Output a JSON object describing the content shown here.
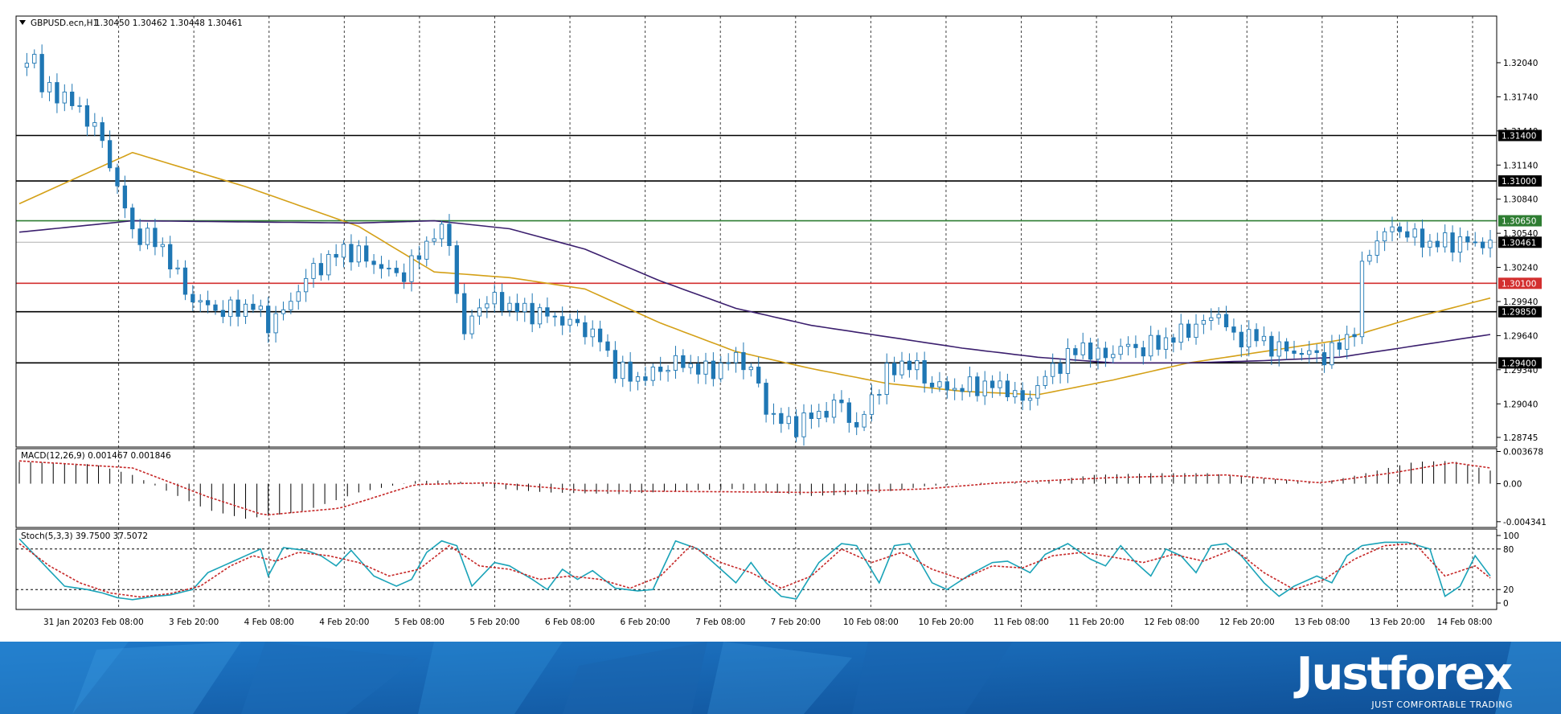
{
  "colors": {
    "bull": "#ffffff",
    "bear": "#1f77b4",
    "candle_outline": "#1f77b4",
    "ma_fast": "#d4a017",
    "ma_slow": "#3b1f6e",
    "level_green": "#2e7d32",
    "level_red": "#d32f2f",
    "level_black": "#000000",
    "bid_line": "#b0b0b0",
    "macd_signal": "#c62828",
    "stoch_main": "#1aa3b8",
    "stoch_signal": "#c62828",
    "footer_bg": "#1560a8"
  },
  "chart_data": [
    {
      "type": "candlestick",
      "title": "GBPUSD.ecn,H1",
      "ohlc_header": "1.30450 1.30462 1.30448 1.30461",
      "ylim": [
        1.2866,
        1.3245
      ],
      "y_ticks": [
        "1.32040",
        "1.31740",
        "1.31440",
        "1.31140",
        "1.30840",
        "1.30540",
        "1.30240",
        "1.29940",
        "1.29640",
        "1.29340",
        "1.29040",
        "1.28745"
      ],
      "y_tick_values": [
        1.3204,
        1.3174,
        1.3144,
        1.3114,
        1.3084,
        1.3054,
        1.3024,
        1.2994,
        1.2964,
        1.2934,
        1.2904,
        1.28745
      ],
      "x_ticks": [
        "31 Jan 2020",
        "3 Feb 08:00",
        "3 Feb 20:00",
        "4 Feb 08:00",
        "4 Feb 20:00",
        "5 Feb 08:00",
        "5 Feb 20:00",
        "6 Feb 08:00",
        "6 Feb 20:00",
        "7 Feb 08:00",
        "7 Feb 20:00",
        "10 Feb 08:00",
        "10 Feb 20:00",
        "11 Feb 08:00",
        "11 Feb 20:00",
        "12 Feb 08:00",
        "12 Feb 20:00",
        "13 Feb 08:00",
        "13 Feb 20:00",
        "14 Feb 08:00"
      ],
      "levels": [
        {
          "label": "1.31400",
          "value": 1.314,
          "color": "#000000",
          "tag_bg": "#000000"
        },
        {
          "label": "1.31000",
          "value": 1.31,
          "color": "#000000",
          "tag_bg": "#000000"
        },
        {
          "label": "1.30650",
          "value": 1.3065,
          "color": "#2e7d32",
          "tag_bg": "#2e7d32"
        },
        {
          "label": "1.30100",
          "value": 1.301,
          "color": "#d32f2f",
          "tag_bg": "#d32f2f"
        },
        {
          "label": "1.29850",
          "value": 1.2985,
          "color": "#000000",
          "tag_bg": "#000000"
        },
        {
          "label": "1.29400",
          "value": 1.294,
          "color": "#000000",
          "tag_bg": "#000000"
        }
      ],
      "current_price": {
        "label": "1.30461",
        "value": 1.30461
      },
      "close_path": [
        [
          0,
          1.32
        ],
        [
          4,
          1.3212
        ],
        [
          6,
          1.318
        ],
        [
          10,
          1.3178
        ],
        [
          14,
          1.3168
        ],
        [
          18,
          1.3156
        ],
        [
          22,
          1.3135
        ],
        [
          26,
          1.3095
        ],
        [
          30,
          1.3055
        ],
        [
          34,
          1.305
        ],
        [
          38,
          1.3042
        ],
        [
          42,
          1.3015
        ],
        [
          46,
          1.2995
        ],
        [
          50,
          1.299
        ],
        [
          54,
          1.2985
        ],
        [
          58,
          1.2988
        ],
        [
          62,
          1.299
        ],
        [
          66,
          1.2975
        ],
        [
          70,
          1.2985
        ],
        [
          74,
          1.3005
        ],
        [
          78,
          1.3022
        ],
        [
          82,
          1.303
        ],
        [
          86,
          1.304
        ],
        [
          90,
          1.3035
        ],
        [
          94,
          1.3028
        ],
        [
          98,
          1.302
        ],
        [
          102,
          1.3018
        ],
        [
          106,
          1.3035
        ],
        [
          110,
          1.3055
        ],
        [
          114,
          1.305
        ],
        [
          116,
          1.3
        ],
        [
          118,
          1.2965
        ],
        [
          122,
          1.2992
        ],
        [
          126,
          1.2995
        ],
        [
          130,
          1.299
        ],
        [
          134,
          1.2985
        ],
        [
          138,
          1.2983
        ],
        [
          142,
          1.298
        ],
        [
          146,
          1.2975
        ],
        [
          150,
          1.297
        ],
        [
          154,
          1.296
        ],
        [
          158,
          1.2935
        ],
        [
          162,
          1.2928
        ],
        [
          166,
          1.2927
        ],
        [
          170,
          1.2935
        ],
        [
          174,
          1.294
        ],
        [
          178,
          1.2938
        ],
        [
          182,
          1.2932
        ],
        [
          186,
          1.2937
        ],
        [
          190,
          1.2945
        ],
        [
          194,
          1.2935
        ],
        [
          198,
          1.29
        ],
        [
          202,
          1.2888
        ],
        [
          206,
          1.2885
        ],
        [
          210,
          1.2893
        ],
        [
          214,
          1.2898
        ],
        [
          218,
          1.2905
        ],
        [
          222,
          1.288
        ],
        [
          226,
          1.291
        ],
        [
          230,
          1.293
        ],
        [
          234,
          1.294
        ],
        [
          238,
          1.2935
        ],
        [
          242,
          1.292
        ],
        [
          246,
          1.2918
        ],
        [
          250,
          1.2918
        ],
        [
          254,
          1.292
        ],
        [
          258,
          1.292
        ],
        [
          262,
          1.2918
        ],
        [
          266,
          1.2905
        ],
        [
          270,
          1.292
        ],
        [
          274,
          1.2935
        ],
        [
          278,
          1.2945
        ],
        [
          282,
          1.2955
        ],
        [
          286,
          1.2945
        ],
        [
          290,
          1.295
        ],
        [
          294,
          1.2955
        ],
        [
          298,
          1.2952
        ],
        [
          302,
          1.2958
        ],
        [
          306,
          1.2962
        ],
        [
          310,
          1.297
        ],
        [
          314,
          1.2975
        ],
        [
          318,
          1.2985
        ],
        [
          322,
          1.296
        ],
        [
          326,
          1.2965
        ],
        [
          330,
          1.2958
        ],
        [
          334,
          1.2952
        ],
        [
          338,
          1.295
        ],
        [
          342,
          1.2948
        ],
        [
          346,
          1.2946
        ],
        [
          350,
          1.2955
        ],
        [
          354,
          1.297
        ],
        [
          356,
          1.302
        ],
        [
          358,
          1.304
        ],
        [
          362,
          1.3055
        ],
        [
          366,
          1.3058
        ],
        [
          370,
          1.305
        ],
        [
          374,
          1.3045
        ],
        [
          378,
          1.3046
        ],
        [
          382,
          1.3047
        ],
        [
          386,
          1.3045
        ],
        [
          390,
          1.30461
        ]
      ],
      "ma_fast": [
        [
          0,
          1.308
        ],
        [
          30,
          1.3125
        ],
        [
          60,
          1.3095
        ],
        [
          90,
          1.306
        ],
        [
          110,
          1.302
        ],
        [
          130,
          1.3015
        ],
        [
          150,
          1.3005
        ],
        [
          170,
          1.2975
        ],
        [
          190,
          1.295
        ],
        [
          210,
          1.2935
        ],
        [
          230,
          1.2922
        ],
        [
          250,
          1.2915
        ],
        [
          270,
          1.2912
        ],
        [
          290,
          1.2925
        ],
        [
          310,
          1.294
        ],
        [
          330,
          1.295
        ],
        [
          350,
          1.296
        ],
        [
          370,
          1.298
        ],
        [
          390,
          1.2997
        ]
      ],
      "ma_slow": [
        [
          0,
          1.3055
        ],
        [
          30,
          1.3065
        ],
        [
          60,
          1.3064
        ],
        [
          90,
          1.3063
        ],
        [
          110,
          1.3065
        ],
        [
          130,
          1.3058
        ],
        [
          150,
          1.304
        ],
        [
          170,
          1.3012
        ],
        [
          190,
          1.2988
        ],
        [
          210,
          1.2973
        ],
        [
          230,
          1.2963
        ],
        [
          250,
          1.2953
        ],
        [
          270,
          1.2945
        ],
        [
          290,
          1.294
        ],
        [
          310,
          1.294
        ],
        [
          330,
          1.2942
        ],
        [
          350,
          1.2945
        ],
        [
          370,
          1.2955
        ],
        [
          390,
          1.2965
        ]
      ]
    },
    {
      "type": "bar",
      "title": "MACD(12,26,9) 0.001467 0.001846",
      "ylim": [
        -0.005,
        0.004
      ],
      "y_ticks": [
        "0.003678",
        "0.00",
        "-0.004341"
      ],
      "y_tick_values": [
        0.003678,
        0,
        -0.004341
      ],
      "series_points": [
        [
          0,
          0.0025
        ],
        [
          20,
          0.0022
        ],
        [
          30,
          0.001
        ],
        [
          40,
          -0.001
        ],
        [
          50,
          -0.003
        ],
        [
          60,
          -0.004
        ],
        [
          75,
          -0.0032
        ],
        [
          90,
          -0.001
        ],
        [
          105,
          0.0003
        ],
        [
          115,
          0.0004
        ],
        [
          125,
          -0.0005
        ],
        [
          140,
          -0.001
        ],
        [
          160,
          -0.0012
        ],
        [
          175,
          -0.0008
        ],
        [
          190,
          -0.0006
        ],
        [
          210,
          -0.0014
        ],
        [
          225,
          -0.0012
        ],
        [
          240,
          -0.0003
        ],
        [
          255,
          0.0001
        ],
        [
          270,
          0.0002
        ],
        [
          285,
          0.001
        ],
        [
          300,
          0.0012
        ],
        [
          315,
          0.0012
        ],
        [
          330,
          0.0006
        ],
        [
          345,
          0.0001
        ],
        [
          355,
          0.001
        ],
        [
          370,
          0.0025
        ],
        [
          380,
          0.0026
        ],
        [
          390,
          0.0015
        ]
      ],
      "signal_points": [
        [
          0,
          0.0026
        ],
        [
          30,
          0.0018
        ],
        [
          50,
          -0.0015
        ],
        [
          65,
          -0.0036
        ],
        [
          85,
          -0.0028
        ],
        [
          105,
          -0.0001
        ],
        [
          125,
          0.0001
        ],
        [
          150,
          -0.0008
        ],
        [
          180,
          -0.0009
        ],
        [
          210,
          -0.001
        ],
        [
          240,
          -0.0006
        ],
        [
          260,
          0.0001
        ],
        [
          290,
          0.0007
        ],
        [
          320,
          0.001
        ],
        [
          345,
          0.0001
        ],
        [
          365,
          0.0013
        ],
        [
          380,
          0.0024
        ],
        [
          390,
          0.0018
        ]
      ]
    },
    {
      "type": "line",
      "title": "Stoch(5,3,3) 39.7500 37.5072",
      "ylim": [
        0,
        100
      ],
      "y_ticks": [
        "100",
        "80",
        "20",
        "0"
      ],
      "y_tick_values": [
        100,
        80,
        20,
        0
      ],
      "main_points": [
        [
          0,
          95
        ],
        [
          6,
          60
        ],
        [
          12,
          25
        ],
        [
          18,
          20
        ],
        [
          22,
          15
        ],
        [
          26,
          8
        ],
        [
          30,
          5
        ],
        [
          36,
          10
        ],
        [
          40,
          12
        ],
        [
          46,
          20
        ],
        [
          50,
          45
        ],
        [
          56,
          60
        ],
        [
          60,
          70
        ],
        [
          64,
          80
        ],
        [
          66,
          40
        ],
        [
          70,
          82
        ],
        [
          76,
          78
        ],
        [
          80,
          70
        ],
        [
          84,
          55
        ],
        [
          88,
          78
        ],
        [
          94,
          40
        ],
        [
          100,
          25
        ],
        [
          104,
          35
        ],
        [
          108,
          75
        ],
        [
          112,
          92
        ],
        [
          116,
          85
        ],
        [
          120,
          25
        ],
        [
          126,
          60
        ],
        [
          130,
          55
        ],
        [
          136,
          35
        ],
        [
          140,
          20
        ],
        [
          144,
          50
        ],
        [
          148,
          35
        ],
        [
          152,
          48
        ],
        [
          158,
          22
        ],
        [
          164,
          18
        ],
        [
          168,
          20
        ],
        [
          174,
          92
        ],
        [
          180,
          80
        ],
        [
          186,
          50
        ],
        [
          190,
          30
        ],
        [
          194,
          60
        ],
        [
          198,
          30
        ],
        [
          202,
          10
        ],
        [
          206,
          6
        ],
        [
          212,
          60
        ],
        [
          218,
          88
        ],
        [
          222,
          85
        ],
        [
          228,
          30
        ],
        [
          232,
          85
        ],
        [
          236,
          88
        ],
        [
          242,
          30
        ],
        [
          246,
          20
        ],
        [
          252,
          42
        ],
        [
          258,
          60
        ],
        [
          262,
          62
        ],
        [
          268,
          45
        ],
        [
          272,
          72
        ],
        [
          278,
          88
        ],
        [
          284,
          65
        ],
        [
          288,
          55
        ],
        [
          292,
          85
        ],
        [
          296,
          60
        ],
        [
          300,
          40
        ],
        [
          304,
          80
        ],
        [
          308,
          70
        ],
        [
          312,
          45
        ],
        [
          316,
          85
        ],
        [
          320,
          88
        ],
        [
          324,
          70
        ],
        [
          330,
          30
        ],
        [
          334,
          10
        ],
        [
          338,
          25
        ],
        [
          344,
          40
        ],
        [
          348,
          30
        ],
        [
          352,
          70
        ],
        [
          356,
          85
        ],
        [
          362,
          90
        ],
        [
          368,
          90
        ],
        [
          374,
          80
        ],
        [
          378,
          10
        ],
        [
          382,
          25
        ],
        [
          386,
          70
        ],
        [
          390,
          40
        ]
      ],
      "signal_points": [
        [
          0,
          88
        ],
        [
          8,
          55
        ],
        [
          16,
          30
        ],
        [
          24,
          15
        ],
        [
          32,
          9
        ],
        [
          40,
          14
        ],
        [
          48,
          25
        ],
        [
          56,
          55
        ],
        [
          62,
          70
        ],
        [
          68,
          62
        ],
        [
          74,
          75
        ],
        [
          82,
          70
        ],
        [
          90,
          60
        ],
        [
          98,
          40
        ],
        [
          106,
          50
        ],
        [
          114,
          85
        ],
        [
          122,
          55
        ],
        [
          130,
          50
        ],
        [
          138,
          35
        ],
        [
          146,
          40
        ],
        [
          154,
          35
        ],
        [
          162,
          22
        ],
        [
          170,
          40
        ],
        [
          178,
          85
        ],
        [
          186,
          60
        ],
        [
          194,
          45
        ],
        [
          202,
          22
        ],
        [
          210,
          40
        ],
        [
          218,
          80
        ],
        [
          226,
          60
        ],
        [
          234,
          75
        ],
        [
          242,
          50
        ],
        [
          250,
          35
        ],
        [
          258,
          55
        ],
        [
          266,
          52
        ],
        [
          274,
          70
        ],
        [
          282,
          75
        ],
        [
          290,
          68
        ],
        [
          298,
          60
        ],
        [
          306,
          72
        ],
        [
          314,
          62
        ],
        [
          322,
          80
        ],
        [
          330,
          45
        ],
        [
          338,
          20
        ],
        [
          346,
          35
        ],
        [
          354,
          65
        ],
        [
          362,
          85
        ],
        [
          370,
          88
        ],
        [
          378,
          40
        ],
        [
          386,
          55
        ],
        [
          390,
          37
        ]
      ]
    }
  ],
  "footer": {
    "brand": "Justforex",
    "tagline": "JUST COMFORTABLE TRADING"
  }
}
